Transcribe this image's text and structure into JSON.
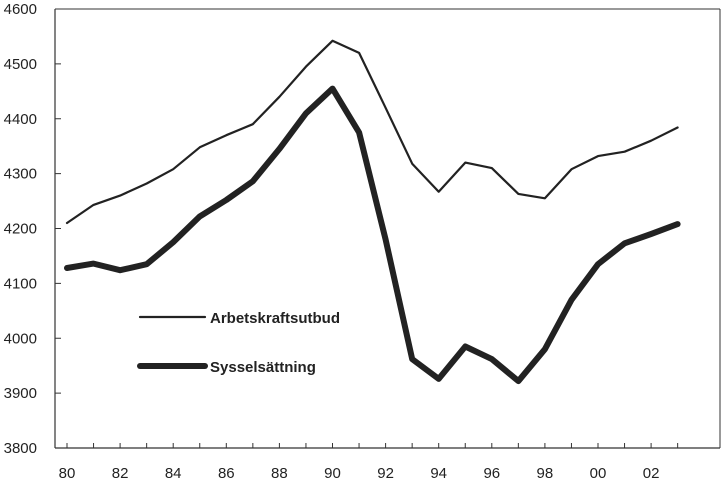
{
  "chart_data": {
    "type": "line",
    "x": [
      "80",
      "81",
      "82",
      "83",
      "84",
      "85",
      "86",
      "87",
      "88",
      "89",
      "90",
      "91",
      "92",
      "93",
      "94",
      "95",
      "96",
      "97",
      "98",
      "99",
      "00",
      "01",
      "02",
      "03"
    ],
    "x_tick_labels": [
      "80",
      "82",
      "84",
      "86",
      "88",
      "90",
      "92",
      "94",
      "96",
      "98",
      "00",
      "02"
    ],
    "y_tick_labels": [
      "3800",
      "3900",
      "4000",
      "4100",
      "4200",
      "4300",
      "4400",
      "4500",
      "4600"
    ],
    "ylim": [
      3800,
      4600
    ],
    "grid": false,
    "legend_placement": "center-left",
    "series": [
      {
        "name": "Arbetskraftsutbud",
        "color": "#222222",
        "style": "thin",
        "values": [
          4210,
          4243,
          4260,
          4282,
          4308,
          4348,
          4370,
          4390,
          4440,
          4495,
          4542,
          4520,
          4420,
          4318,
          4267,
          4320,
          4310,
          4263,
          4255,
          4308,
          4332,
          4340,
          4360,
          4384
        ]
      },
      {
        "name": "Sysselsättning",
        "color": "#222222",
        "style": "thick",
        "values": [
          4128,
          4136,
          4124,
          4135,
          4175,
          4222,
          4252,
          4286,
          4345,
          4410,
          4455,
          4375,
          4180,
          3962,
          3926,
          3985,
          3962,
          3922,
          3980,
          4070,
          4135,
          4173,
          4190,
          4208
        ]
      }
    ]
  }
}
